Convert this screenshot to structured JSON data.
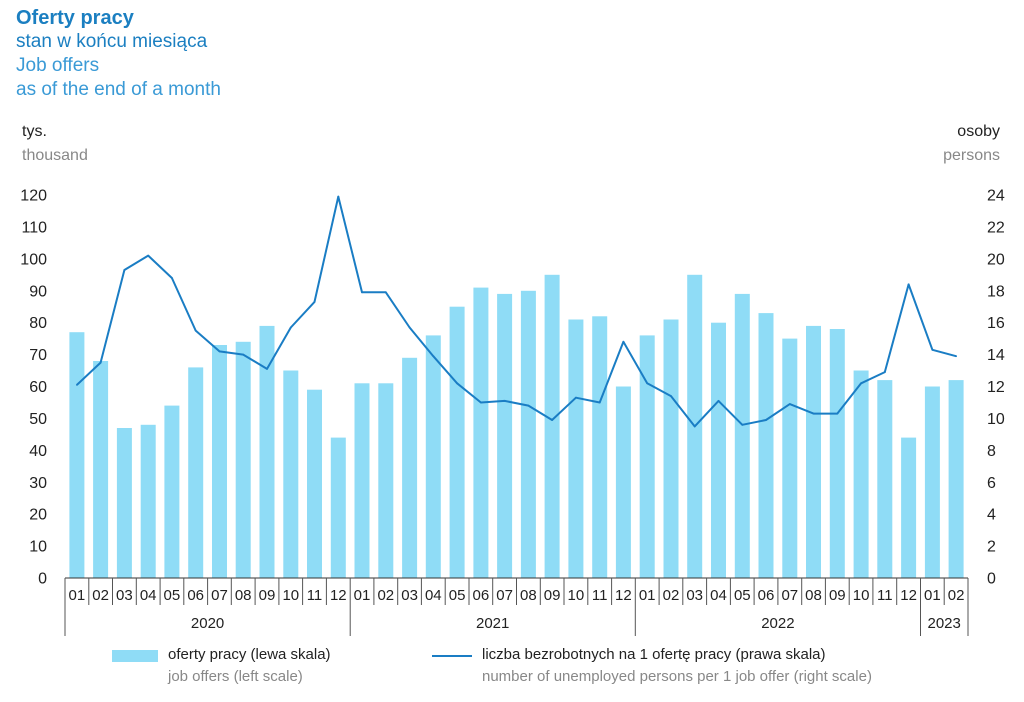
{
  "title": {
    "pl_bold": "Oferty pracy",
    "pl": "stan w końcu miesiąca",
    "en1": "Job offers",
    "en2": "as of the end of a month"
  },
  "units": {
    "left_pl": "tys.",
    "left_en": "thousand",
    "right_pl": "osoby",
    "right_en": "persons"
  },
  "legend": {
    "bars_pl": "oferty pracy (lewa skala)",
    "bars_en": "job offers (left scale)",
    "line_pl": "liczba bezrobotnych na 1 ofertę pracy (prawa skala)",
    "line_en": "number of unemployed persons per 1 job offer (right scale)"
  },
  "colors": {
    "bars": "#8fdcf6",
    "line": "#1a7dc4",
    "title": "#1b7fc1"
  },
  "chart_data": {
    "type": "bar",
    "categories": [
      "01",
      "02",
      "03",
      "04",
      "05",
      "06",
      "07",
      "08",
      "09",
      "10",
      "11",
      "12",
      "01",
      "02",
      "03",
      "04",
      "05",
      "06",
      "07",
      "08",
      "09",
      "10",
      "11",
      "12",
      "01",
      "02",
      "03",
      "04",
      "05",
      "06",
      "07",
      "08",
      "09",
      "10",
      "11",
      "12",
      "01",
      "02"
    ],
    "years": [
      {
        "label": "2020",
        "count": 12
      },
      {
        "label": "2021",
        "count": 12
      },
      {
        "label": "2022",
        "count": 12
      },
      {
        "label": "2023",
        "count": 2
      }
    ],
    "series": [
      {
        "name": "oferty pracy (lewa skala)",
        "axis": "left",
        "type": "bar",
        "values": [
          77,
          68,
          47,
          48,
          54,
          66,
          73,
          74,
          79,
          65,
          59,
          44,
          61,
          61,
          69,
          76,
          85,
          91,
          89,
          90,
          95,
          81,
          82,
          60,
          76,
          81,
          95,
          80,
          89,
          83,
          75,
          79,
          78,
          65,
          62,
          44,
          60,
          62
        ]
      },
      {
        "name": "liczba bezrobotnych na 1 ofertę pracy (prawa skala)",
        "axis": "right",
        "type": "line",
        "values": [
          12.1,
          13.5,
          19.3,
          20.2,
          18.8,
          15.5,
          14.2,
          14.0,
          13.1,
          15.7,
          17.3,
          23.9,
          17.9,
          17.9,
          15.7,
          13.9,
          12.2,
          11.0,
          11.1,
          10.8,
          9.9,
          11.3,
          11.0,
          14.8,
          12.2,
          11.4,
          9.5,
          11.1,
          9.6,
          9.9,
          10.9,
          10.3,
          10.3,
          12.2,
          12.9,
          18.4,
          14.3,
          13.9
        ]
      }
    ],
    "ylim_left": [
      0,
      120
    ],
    "yticks_left": [
      0,
      10,
      20,
      30,
      40,
      50,
      60,
      70,
      80,
      90,
      100,
      110,
      120
    ],
    "ylim_right": [
      0,
      24
    ],
    "yticks_right": [
      0,
      2,
      4,
      6,
      8,
      10,
      12,
      14,
      16,
      18,
      20,
      22,
      24
    ],
    "grid": false,
    "legend_position": "bottom"
  }
}
